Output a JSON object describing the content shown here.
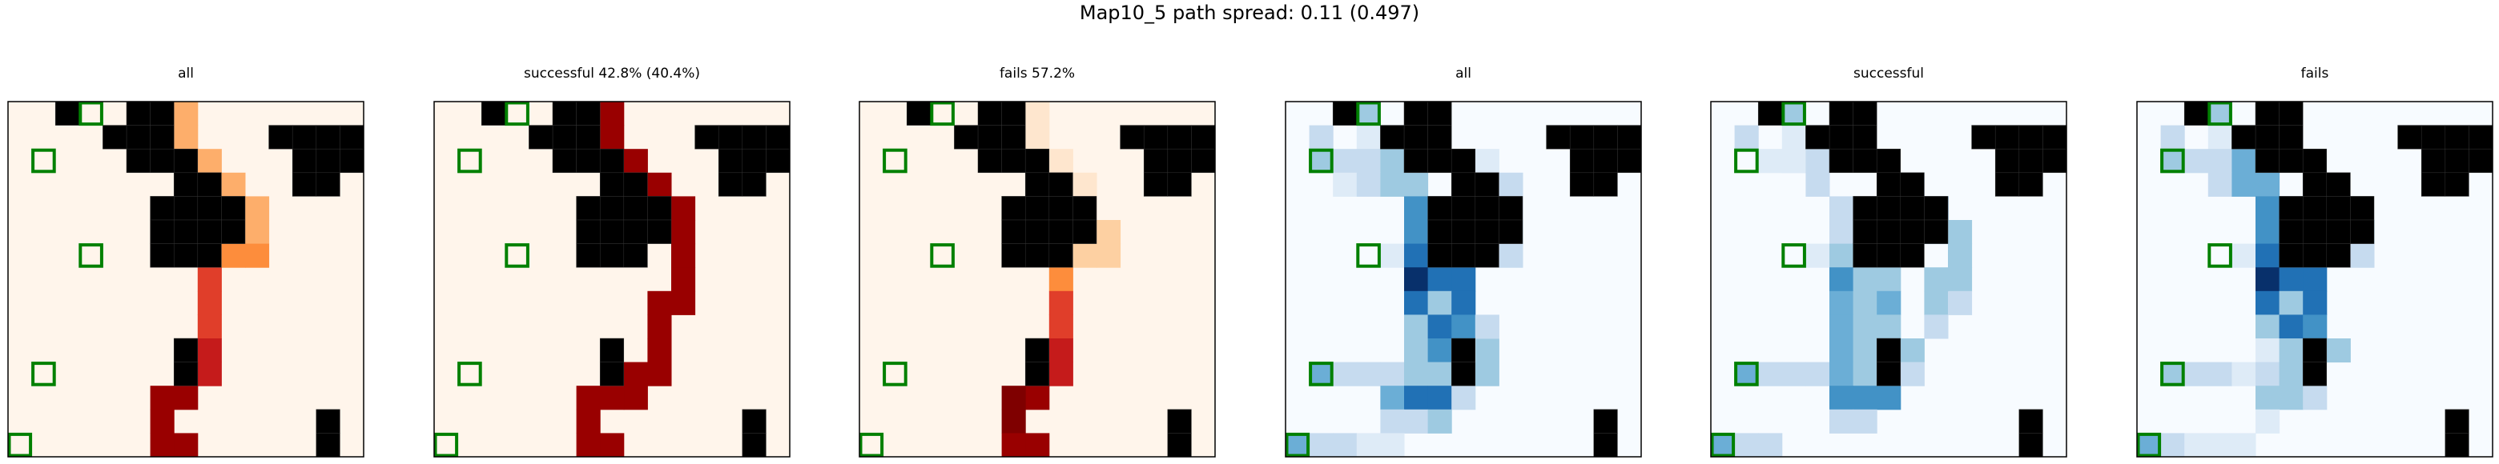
{
  "title": "Map10_5 path spread: 0.11 (0.497)",
  "colors": {
    "reds": [
      "#fff5eb",
      "#fee6ce",
      "#fdd0a2",
      "#fdae6b",
      "#fd8d3c",
      "#f16913",
      "#e03e2a",
      "#c51b1b",
      "#a50f15",
      "#990000",
      "#7f0000"
    ],
    "blues": [
      "#f7fbff",
      "#deebf7",
      "#c6dbef",
      "#9ecae1",
      "#6baed6",
      "#4292c6",
      "#2171b5",
      "#08519c",
      "#08306b"
    ],
    "obstacle": "#000000",
    "marker": "#008000"
  },
  "chart_data": {
    "type": "heatmap",
    "grid_size": 15,
    "obstacles": [
      [
        0,
        5
      ],
      [
        0,
        6
      ],
      [
        1,
        5
      ],
      [
        1,
        6
      ],
      [
        2,
        5
      ],
      [
        1,
        11
      ],
      [
        1,
        12
      ],
      [
        1,
        13
      ],
      [
        1,
        14
      ],
      [
        2,
        13
      ],
      [
        2,
        14
      ],
      [
        2,
        6
      ],
      [
        3,
        7
      ],
      [
        3,
        8
      ],
      [
        3,
        12
      ],
      [
        4,
        7
      ],
      [
        4,
        8
      ],
      [
        4,
        9
      ],
      [
        5,
        7
      ],
      [
        5,
        8
      ],
      [
        5,
        9
      ],
      [
        6,
        7
      ],
      [
        6,
        8
      ],
      [
        10,
        7
      ],
      [
        11,
        7
      ],
      [
        13,
        13
      ],
      [
        14,
        13
      ],
      [
        0,
        2
      ],
      [
        1,
        4
      ],
      [
        2,
        7
      ],
      [
        2,
        12
      ],
      [
        3,
        13
      ],
      [
        4,
        6
      ],
      [
        5,
        6
      ],
      [
        6,
        6
      ]
    ],
    "markers": [
      [
        0,
        3
      ],
      [
        2,
        1
      ],
      [
        6,
        3
      ],
      [
        11,
        1
      ],
      [
        14,
        0
      ]
    ],
    "panels": [
      {
        "title": "all",
        "colormap": "reds",
        "cells": [
          [
            0,
            7,
            3
          ],
          [
            1,
            7,
            3
          ],
          [
            2,
            7,
            3
          ],
          [
            2,
            8,
            3
          ],
          [
            3,
            8,
            3
          ],
          [
            3,
            9,
            3
          ],
          [
            4,
            9,
            3
          ],
          [
            4,
            10,
            3
          ],
          [
            5,
            10,
            3
          ],
          [
            6,
            10,
            4
          ],
          [
            6,
            9,
            4
          ],
          [
            7,
            8,
            6
          ],
          [
            8,
            8,
            6
          ],
          [
            9,
            8,
            6
          ],
          [
            10,
            8,
            7
          ],
          [
            11,
            8,
            7
          ],
          [
            11,
            7,
            8
          ],
          [
            12,
            7,
            9
          ],
          [
            12,
            6,
            9
          ],
          [
            13,
            6,
            9
          ],
          [
            14,
            6,
            9
          ],
          [
            14,
            7,
            9
          ]
        ]
      },
      {
        "title": "successful 42.8% (40.4%)",
        "colormap": "reds",
        "cells": [
          [
            0,
            7,
            9
          ],
          [
            1,
            7,
            9
          ],
          [
            2,
            7,
            9
          ],
          [
            2,
            8,
            9
          ],
          [
            3,
            8,
            9
          ],
          [
            3,
            9,
            9
          ],
          [
            4,
            9,
            9
          ],
          [
            4,
            10,
            9
          ],
          [
            5,
            10,
            9
          ],
          [
            6,
            10,
            9
          ],
          [
            7,
            10,
            9
          ],
          [
            8,
            10,
            9
          ],
          [
            8,
            9,
            9
          ],
          [
            9,
            9,
            9
          ],
          [
            10,
            9,
            9
          ],
          [
            11,
            9,
            9
          ],
          [
            11,
            8,
            9
          ],
          [
            12,
            8,
            9
          ],
          [
            12,
            7,
            9
          ],
          [
            12,
            6,
            9
          ],
          [
            13,
            6,
            9
          ],
          [
            14,
            6,
            9
          ],
          [
            14,
            7,
            9
          ]
        ]
      },
      {
        "title": "fails 57.2%",
        "colormap": "reds",
        "cells": [
          [
            0,
            7,
            1
          ],
          [
            1,
            7,
            1
          ],
          [
            2,
            7,
            1
          ],
          [
            2,
            8,
            1
          ],
          [
            3,
            8,
            1
          ],
          [
            3,
            9,
            1
          ],
          [
            4,
            9,
            1
          ],
          [
            5,
            9,
            1
          ],
          [
            5,
            10,
            2
          ],
          [
            6,
            10,
            2
          ],
          [
            6,
            9,
            2
          ],
          [
            7,
            8,
            4
          ],
          [
            8,
            8,
            6
          ],
          [
            9,
            8,
            6
          ],
          [
            10,
            8,
            7
          ],
          [
            11,
            8,
            7
          ],
          [
            11,
            7,
            8
          ],
          [
            12,
            7,
            9
          ],
          [
            12,
            6,
            10
          ],
          [
            13,
            6,
            10
          ],
          [
            14,
            6,
            9
          ],
          [
            14,
            7,
            9
          ]
        ]
      },
      {
        "title": "all",
        "colormap": "blues",
        "cells": [
          [
            0,
            3,
            3
          ],
          [
            1,
            3,
            1
          ],
          [
            2,
            3,
            1
          ],
          [
            1,
            1,
            2
          ],
          [
            2,
            1,
            3
          ],
          [
            2,
            2,
            2
          ],
          [
            2,
            3,
            2
          ],
          [
            2,
            4,
            3
          ],
          [
            3,
            2,
            1
          ],
          [
            3,
            3,
            2
          ],
          [
            3,
            4,
            3
          ],
          [
            3,
            5,
            3
          ],
          [
            4,
            5,
            5
          ],
          [
            4,
            6,
            5
          ],
          [
            5,
            5,
            5
          ],
          [
            5,
            6,
            5
          ],
          [
            6,
            4,
            1
          ],
          [
            6,
            5,
            6
          ],
          [
            7,
            5,
            8
          ],
          [
            7,
            6,
            6
          ],
          [
            7,
            7,
            6
          ],
          [
            8,
            5,
            6
          ],
          [
            8,
            6,
            3
          ],
          [
            8,
            7,
            6
          ],
          [
            9,
            5,
            3
          ],
          [
            9,
            6,
            6
          ],
          [
            9,
            7,
            5
          ],
          [
            10,
            5,
            3
          ],
          [
            10,
            6,
            5
          ],
          [
            10,
            8,
            3
          ],
          [
            11,
            1,
            4
          ],
          [
            11,
            2,
            2
          ],
          [
            11,
            3,
            2
          ],
          [
            11,
            4,
            2
          ],
          [
            11,
            5,
            3
          ],
          [
            11,
            6,
            3
          ],
          [
            11,
            8,
            3
          ],
          [
            12,
            4,
            4
          ],
          [
            12,
            5,
            6
          ],
          [
            12,
            6,
            6
          ],
          [
            12,
            7,
            2
          ],
          [
            13,
            4,
            2
          ],
          [
            13,
            5,
            2
          ],
          [
            13,
            6,
            3
          ],
          [
            14,
            0,
            4
          ],
          [
            14,
            1,
            2
          ],
          [
            14,
            2,
            2
          ],
          [
            14,
            3,
            1
          ],
          [
            14,
            4,
            1
          ],
          [
            5,
            9,
            3
          ],
          [
            4,
            9,
            2
          ],
          [
            3,
            9,
            2
          ],
          [
            2,
            8,
            1
          ],
          [
            6,
            9,
            2
          ],
          [
            9,
            8,
            2
          ],
          [
            10,
            7,
            1
          ]
        ]
      },
      {
        "title": "successful",
        "colormap": "blues",
        "cells": [
          [
            0,
            3,
            3
          ],
          [
            1,
            3,
            1
          ],
          [
            2,
            3,
            1
          ],
          [
            1,
            1,
            2
          ],
          [
            2,
            2,
            1
          ],
          [
            2,
            3,
            1
          ],
          [
            2,
            4,
            2
          ],
          [
            3,
            4,
            2
          ],
          [
            4,
            5,
            2
          ],
          [
            4,
            6,
            2
          ],
          [
            5,
            5,
            2
          ],
          [
            5,
            6,
            3
          ],
          [
            6,
            4,
            1
          ],
          [
            6,
            5,
            3
          ],
          [
            7,
            5,
            5
          ],
          [
            7,
            6,
            3
          ],
          [
            7,
            7,
            3
          ],
          [
            8,
            5,
            4
          ],
          [
            8,
            6,
            3
          ],
          [
            8,
            7,
            4
          ],
          [
            9,
            5,
            4
          ],
          [
            9,
            6,
            3
          ],
          [
            9,
            7,
            3
          ],
          [
            10,
            5,
            4
          ],
          [
            10,
            6,
            3
          ],
          [
            10,
            8,
            3
          ],
          [
            11,
            1,
            4
          ],
          [
            11,
            2,
            2
          ],
          [
            11,
            3,
            2
          ],
          [
            11,
            4,
            2
          ],
          [
            11,
            5,
            4
          ],
          [
            11,
            6,
            3
          ],
          [
            11,
            8,
            2
          ],
          [
            12,
            5,
            5
          ],
          [
            12,
            6,
            5
          ],
          [
            12,
            7,
            5
          ],
          [
            13,
            5,
            2
          ],
          [
            13,
            6,
            2
          ],
          [
            14,
            0,
            4
          ],
          [
            14,
            1,
            2
          ],
          [
            14,
            2,
            2
          ],
          [
            3,
            8,
            2
          ],
          [
            4,
            8,
            2
          ],
          [
            5,
            10,
            3
          ],
          [
            6,
            10,
            3
          ],
          [
            7,
            10,
            3
          ],
          [
            8,
            9,
            3
          ],
          [
            8,
            10,
            2
          ],
          [
            9,
            9,
            2
          ],
          [
            4,
            9,
            6
          ],
          [
            5,
            9,
            3
          ],
          [
            7,
            9,
            3
          ]
        ]
      },
      {
        "title": "fails",
        "colormap": "blues",
        "cells": [
          [
            0,
            3,
            3
          ],
          [
            1,
            3,
            1
          ],
          [
            2,
            3,
            1
          ],
          [
            1,
            1,
            2
          ],
          [
            2,
            1,
            3
          ],
          [
            2,
            2,
            2
          ],
          [
            2,
            3,
            2
          ],
          [
            2,
            4,
            4
          ],
          [
            3,
            3,
            2
          ],
          [
            3,
            4,
            4
          ],
          [
            3,
            5,
            4
          ],
          [
            4,
            5,
            5
          ],
          [
            4,
            6,
            5
          ],
          [
            5,
            5,
            5
          ],
          [
            5,
            6,
            6
          ],
          [
            6,
            4,
            1
          ],
          [
            6,
            5,
            6
          ],
          [
            7,
            5,
            8
          ],
          [
            7,
            6,
            6
          ],
          [
            7,
            7,
            6
          ],
          [
            8,
            5,
            6
          ],
          [
            8,
            6,
            3
          ],
          [
            8,
            7,
            6
          ],
          [
            9,
            5,
            3
          ],
          [
            9,
            6,
            6
          ],
          [
            9,
            7,
            5
          ],
          [
            10,
            5,
            1
          ],
          [
            10,
            6,
            3
          ],
          [
            10,
            8,
            3
          ],
          [
            11,
            1,
            3
          ],
          [
            11,
            2,
            2
          ],
          [
            11,
            3,
            2
          ],
          [
            11,
            4,
            1
          ],
          [
            11,
            5,
            2
          ],
          [
            11,
            6,
            3
          ],
          [
            12,
            5,
            3
          ],
          [
            12,
            6,
            3
          ],
          [
            12,
            7,
            2
          ],
          [
            13,
            5,
            1
          ],
          [
            14,
            0,
            4
          ],
          [
            14,
            1,
            2
          ],
          [
            14,
            2,
            1
          ],
          [
            14,
            3,
            1
          ],
          [
            14,
            4,
            1
          ],
          [
            5,
            9,
            3
          ],
          [
            6,
            9,
            2
          ]
        ]
      }
    ]
  }
}
